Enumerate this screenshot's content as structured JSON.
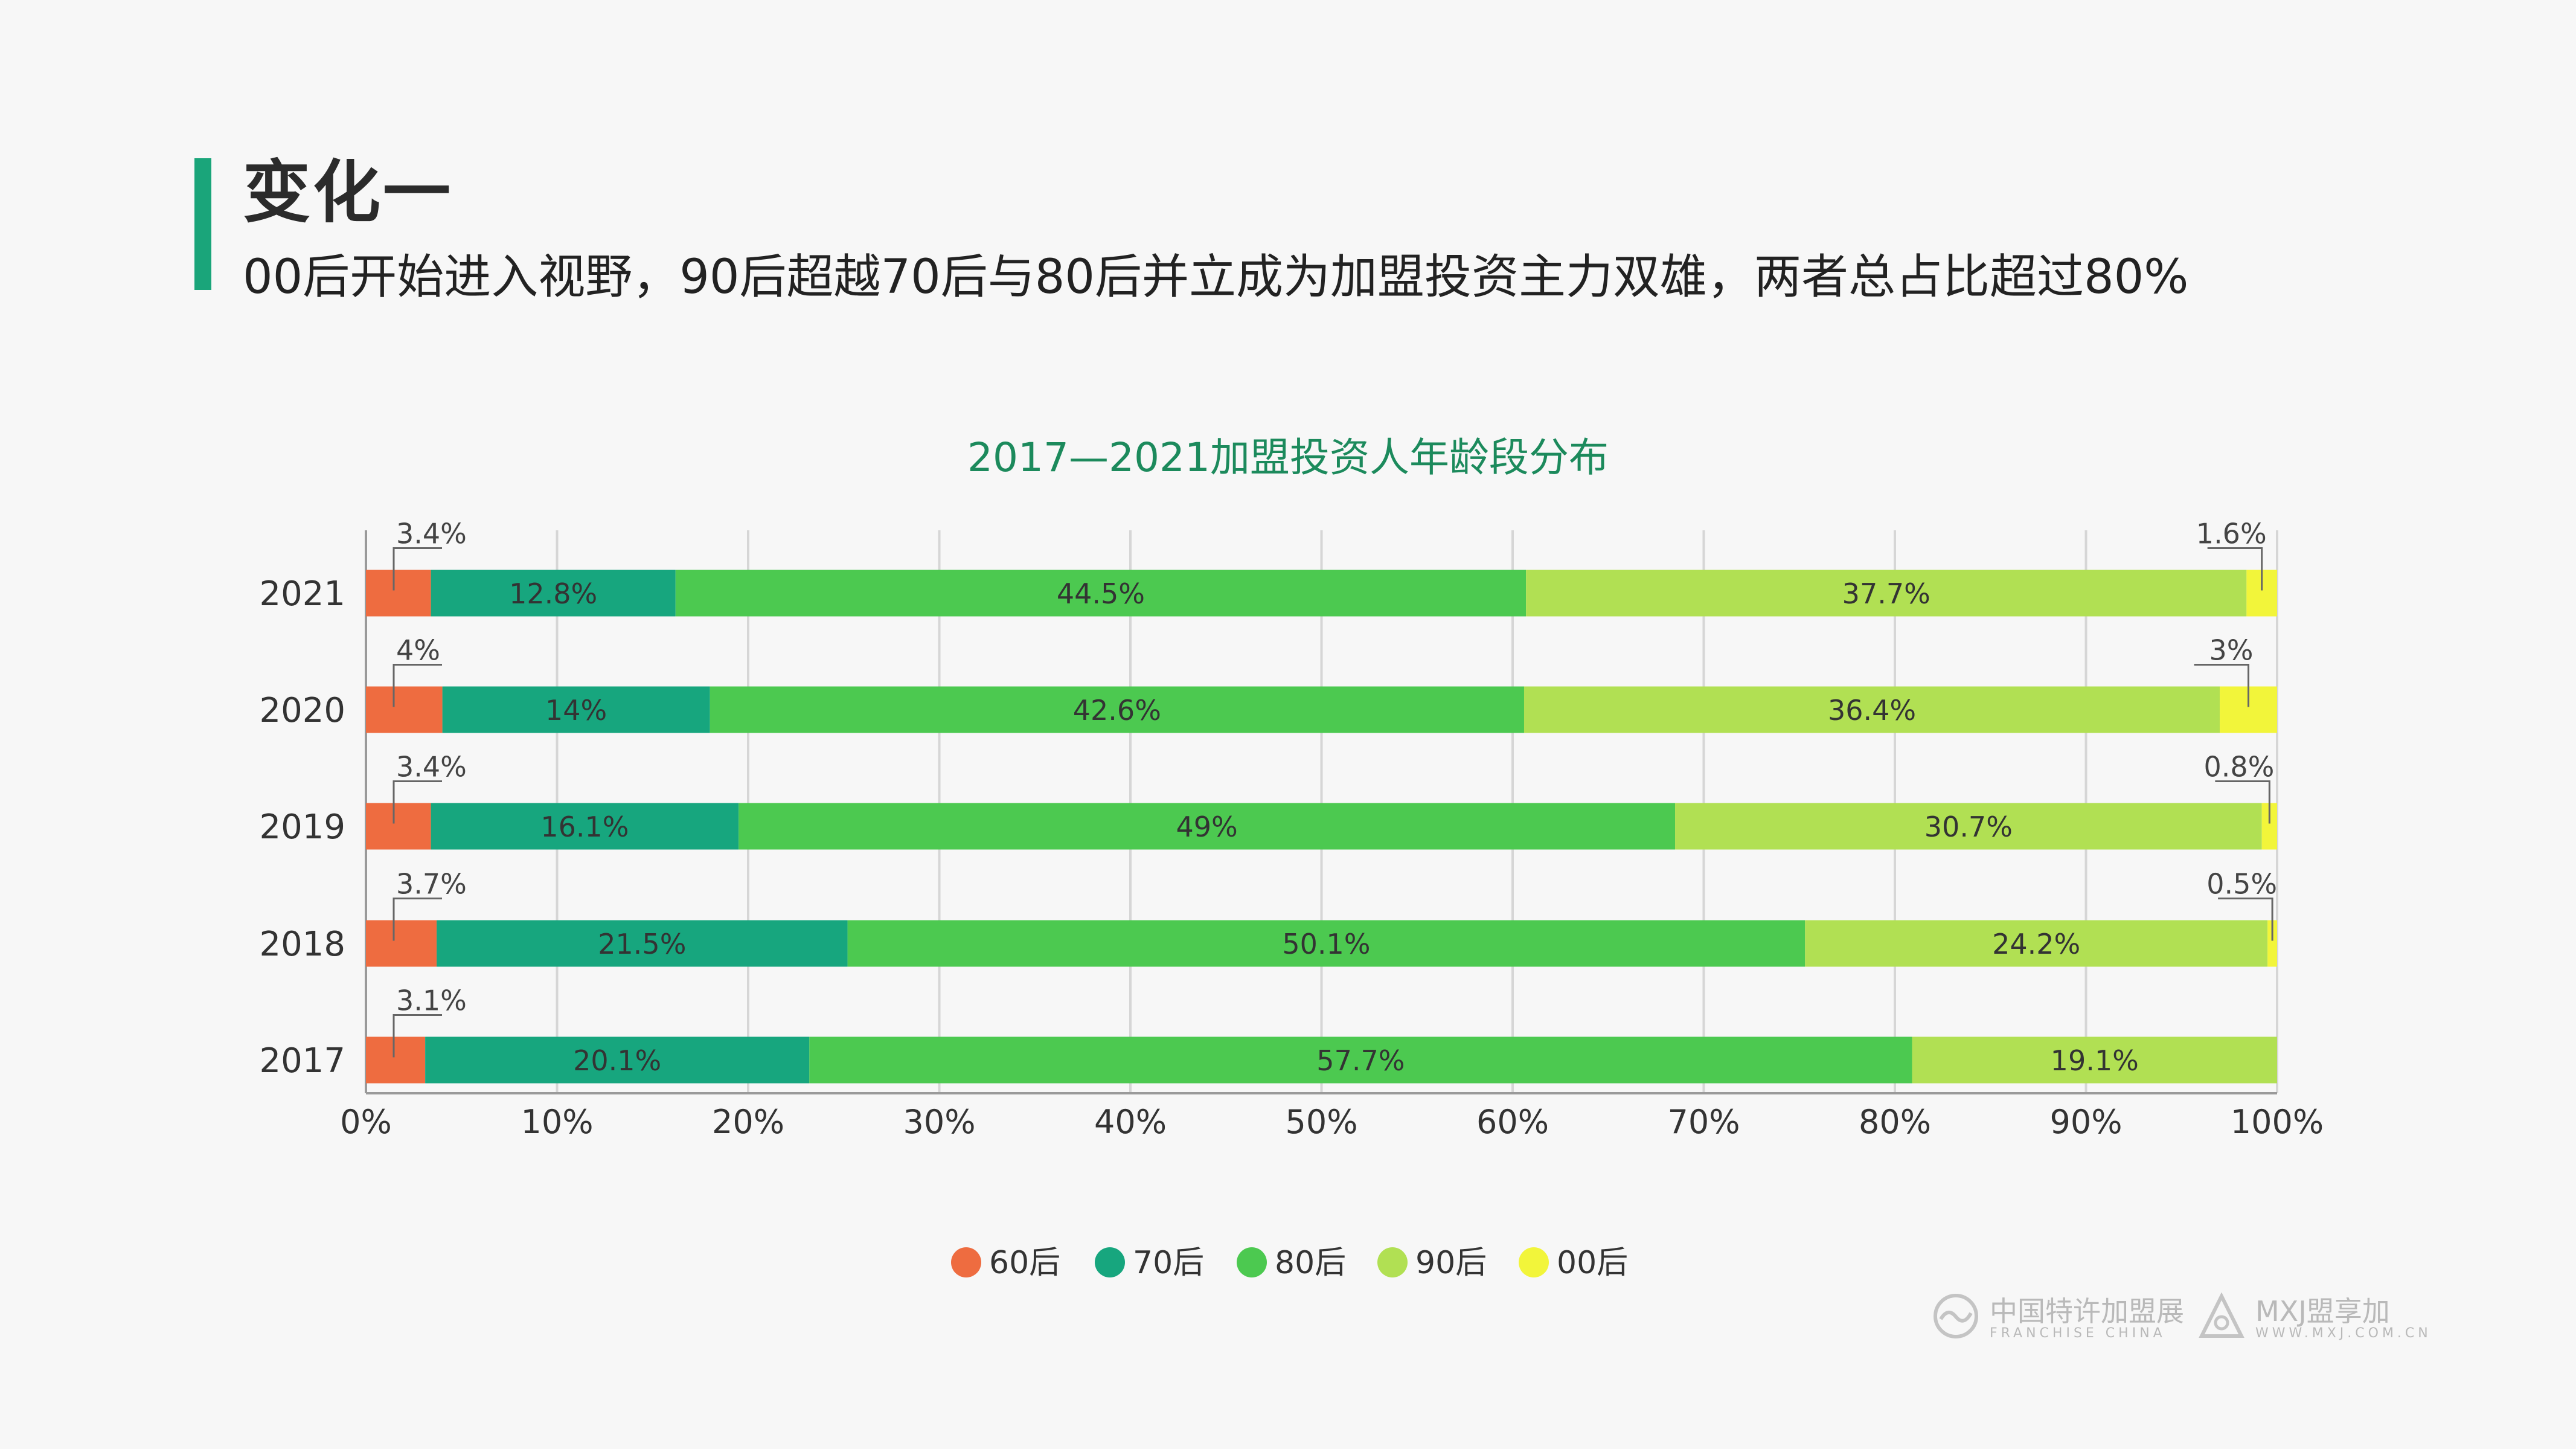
{
  "header": {
    "title": "变化一",
    "subtitle": "00后开始进入视野，90后超越70后与80后并立成为加盟投资主力双雄，两者总占比超过80%"
  },
  "colors": {
    "accent": "#1aa57a",
    "title": "#1c8a5c",
    "series": [
      "#ee6c40",
      "#17a67e",
      "#4cc950",
      "#b1e053",
      "#f2f53a"
    ]
  },
  "chart_data": {
    "type": "bar",
    "orientation": "horizontal",
    "stacked": true,
    "title": "2017—2021加盟投资人年龄段分布",
    "categories": [
      "2021",
      "2020",
      "2019",
      "2018",
      "2017"
    ],
    "series": [
      {
        "name": "60后",
        "values": [
          3.4,
          4,
          3.4,
          3.7,
          3.1
        ],
        "labels": [
          "3.4%",
          "4%",
          "3.4%",
          "3.7%",
          "3.1%"
        ]
      },
      {
        "name": "70后",
        "values": [
          12.8,
          14,
          16.1,
          21.5,
          20.1
        ],
        "labels": [
          "12.8%",
          "14%",
          "16.1%",
          "21.5%",
          "20.1%"
        ]
      },
      {
        "name": "80后",
        "values": [
          44.5,
          42.6,
          49,
          50.1,
          57.7
        ],
        "labels": [
          "44.5%",
          "42.6%",
          "49%",
          "50.1%",
          "57.7%"
        ]
      },
      {
        "name": "90后",
        "values": [
          37.7,
          36.4,
          30.7,
          24.2,
          19.1
        ],
        "labels": [
          "37.7%",
          "36.4%",
          "30.7%",
          "24.2%",
          "19.1%"
        ]
      },
      {
        "name": "00后",
        "values": [
          1.6,
          3,
          0.8,
          0.5,
          0
        ],
        "labels": [
          "1.6%",
          "3%",
          "0.8%",
          "0.5%",
          ""
        ]
      }
    ],
    "xlim": [
      0,
      100
    ],
    "xticks": [
      "0%",
      "10%",
      "20%",
      "30%",
      "40%",
      "50%",
      "60%",
      "70%",
      "80%",
      "90%",
      "100%"
    ],
    "grid": true,
    "legend": "bottom"
  },
  "watermarks": {
    "brand1_cn": "中国特许加盟展",
    "brand1_en": "FRANCHISE CHINA",
    "brand2_cn": "MXJ盟享加",
    "brand2_en": "WWW.MXJ.COM.CN"
  }
}
